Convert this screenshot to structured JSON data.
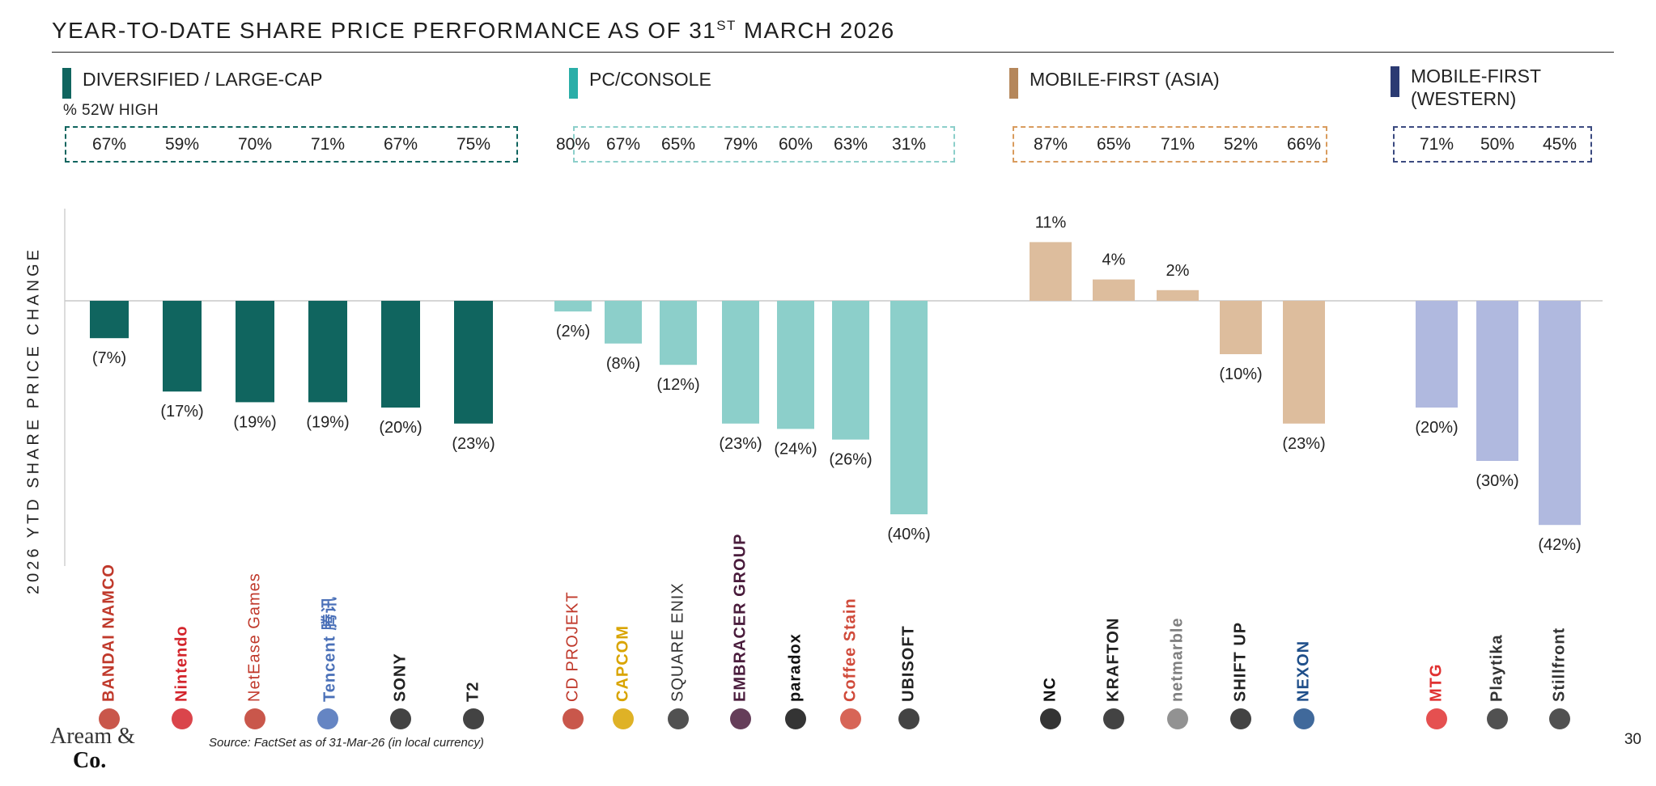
{
  "title": {
    "prefix": "YEAR-TO-DATE SHARE PRICE PERFORMANCE AS OF 31",
    "superscript": "ST",
    "suffix": " MARCH 2026"
  },
  "sub_label": "% 52W HIGH",
  "groups": [
    {
      "name": "DIVERSIFIED / LARGE-CAP",
      "color": "#10655f",
      "pct_52w_high": [
        "67%",
        "59%",
        "70%",
        "71%",
        "67%",
        "75%"
      ]
    },
    {
      "name": "PC/CONSOLE",
      "color": "#8ccfca",
      "pct_52w_high": [
        "80%",
        "67%",
        "65%",
        "79%",
        "60%",
        "63%",
        "31%"
      ]
    },
    {
      "name": "MOBILE-FIRST (ASIA)",
      "color": "#ddbd9d",
      "pct_52w_high": [
        "87%",
        "65%",
        "71%",
        "52%",
        "66%"
      ]
    },
    {
      "name_line1": "MOBILE-FIRST",
      "name_line2": "(WESTERN)",
      "color": "#b0b9df",
      "pct_52w_high": [
        "71%",
        "50%",
        "45%"
      ]
    }
  ],
  "group_swatch_colors": [
    "#10655f",
    "#2aaea8",
    "#b5875b",
    "#2b3a72"
  ],
  "group_box_colors": [
    "#10655f",
    "#8ccfca",
    "#d99c5e",
    "#3b4a80"
  ],
  "chart_data": {
    "type": "bar",
    "title": "YEAR-TO-DATE SHARE PRICE PERFORMANCE AS OF 31ST MARCH 2026",
    "ylabel": "2026 YTD SHARE PRICE CHANGE",
    "ylim": [
      -45,
      15
    ],
    "categories": [
      "BANDAI NAMCO",
      "Nintendo",
      "NetEase Games",
      "Tencent 腾讯",
      "SONY",
      "T2",
      "CD PROJEKT",
      "CAPCOM",
      "SQUARE ENIX",
      "EMBRACER GROUP",
      "paradox",
      "Coffee Stain",
      "UBISOFT",
      "NC",
      "KRAFTON",
      "netmarble",
      "SHIFT UP",
      "NEXON",
      "MTG",
      "Playtika",
      "Stillfront"
    ],
    "values": [
      -7,
      -17,
      -19,
      -19,
      -20,
      -23,
      -2,
      -8,
      -12,
      -23,
      -24,
      -26,
      -40,
      11,
      4,
      2,
      -10,
      -23,
      -20,
      -30,
      -42
    ],
    "data_labels": [
      "(7%)",
      "(17%)",
      "(19%)",
      "(19%)",
      "(20%)",
      "(23%)",
      "(2%)",
      "(8%)",
      "(12%)",
      "(23%)",
      "(24%)",
      "(26%)",
      "(40%)",
      "11%",
      "4%",
      "2%",
      "(10%)",
      "(23%)",
      "(20%)",
      "(30%)",
      "(42%)"
    ],
    "category_group": [
      0,
      0,
      0,
      0,
      0,
      0,
      1,
      1,
      1,
      1,
      1,
      1,
      1,
      2,
      2,
      2,
      2,
      2,
      3,
      3,
      3
    ],
    "group_bar_colors": [
      "#10655f",
      "#8ccfca",
      "#ddbd9d",
      "#b0b9df"
    ]
  },
  "logos": [
    {
      "text": "BANDAI NAMCO",
      "color": "#c0392b",
      "icon": "bandai-namco-logo-icon",
      "thin": false
    },
    {
      "text": "Nintendo",
      "color": "#d3242b",
      "icon": "nintendo-logo-icon",
      "thin": false
    },
    {
      "text": "NetEase Games",
      "color": "#c0392b",
      "icon": "netease-logo-icon",
      "thin": true
    },
    {
      "text": "Tencent 腾讯",
      "color": "#4a70b8",
      "icon": "tencent-logo-icon",
      "thin": false
    },
    {
      "text": "SONY",
      "color": "#222222",
      "icon": "sony-logo-icon",
      "thin": false
    },
    {
      "text": "T2",
      "color": "#222222",
      "icon": "take-two-logo-icon",
      "thin": false
    },
    {
      "text": "CD PROJEKT",
      "color": "#c0392b",
      "icon": "cd-projekt-logo-icon",
      "thin": true
    },
    {
      "text": "CAPCOM",
      "color": "#d9a400",
      "icon": "capcom-logo-icon",
      "thin": false
    },
    {
      "text": "SQUARE ENIX",
      "color": "#333333",
      "icon": "square-enix-logo-icon",
      "thin": true
    },
    {
      "text": "EMBRACER GROUP",
      "color": "#4a1c3c",
      "icon": "embracer-logo-icon",
      "thin": false
    },
    {
      "text": "paradox",
      "color": "#111111",
      "icon": "paradox-logo-icon",
      "thin": false
    },
    {
      "text": "Coffee Stain",
      "color": "#d04a3a",
      "icon": "coffee-stain-logo-icon",
      "thin": false
    },
    {
      "text": "UBISOFT",
      "color": "#222222",
      "icon": "ubisoft-logo-icon",
      "thin": false
    },
    {
      "text": "NC",
      "color": "#111111",
      "icon": "ncsoft-logo-icon",
      "thin": false
    },
    {
      "text": "KRAFTON",
      "color": "#222222",
      "icon": "krafton-logo-icon",
      "thin": false
    },
    {
      "text": "netmarble",
      "color": "#7f7f7f",
      "icon": "netmarble-logo-icon",
      "thin": false
    },
    {
      "text": "SHIFT UP",
      "color": "#222222",
      "icon": "shift-up-logo-icon",
      "thin": false
    },
    {
      "text": "NEXON",
      "color": "#1f4f8a",
      "icon": "nexon-logo-icon",
      "thin": false
    },
    {
      "text": "MTG",
      "color": "#e03131",
      "icon": "mtg-logo-icon",
      "thin": false
    },
    {
      "text": "Playtika",
      "color": "#333333",
      "icon": "playtika-logo-icon",
      "thin": false
    },
    {
      "text": "Stillfront",
      "color": "#333333",
      "icon": "stillfront-logo-icon",
      "thin": false
    }
  ],
  "footer": {
    "brand_line1": "Aream &",
    "brand_line2": "Co.",
    "source": "Source: FactSet as of 31-Mar-26 (in local currency)",
    "page_number": "30"
  }
}
